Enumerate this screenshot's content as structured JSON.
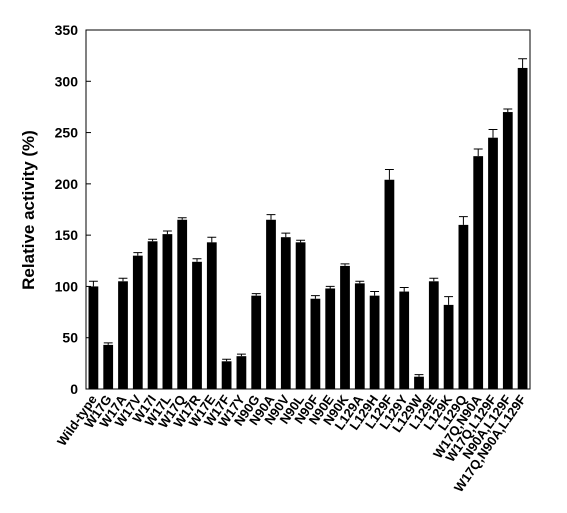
{
  "chart_data": {
    "type": "bar",
    "ylabel": "Relative activity (%)",
    "categories": [
      "Wild-type",
      "W17G",
      "W17A",
      "W17V",
      "W17I",
      "W17L",
      "W17Q",
      "W17R",
      "W17E",
      "W17F",
      "W17Y",
      "N90G",
      "N90A",
      "N90V",
      "N90L",
      "N90F",
      "N90E",
      "N90K",
      "L129A",
      "L129H",
      "L129F",
      "L129Y",
      "L129W",
      "L129E",
      "L129K",
      "L129Q",
      "W17Q,N90A",
      "W17Q,L129F",
      "N90A,L129F",
      "W17Q,N90A,L129F"
    ],
    "values": [
      100,
      43,
      105,
      130,
      144,
      151,
      165,
      124,
      143,
      27,
      32,
      91,
      165,
      148,
      143,
      88,
      98,
      120,
      103,
      91,
      204,
      95,
      12,
      105,
      82,
      160,
      227,
      245,
      270,
      313
    ],
    "errors": [
      5,
      2,
      3,
      3,
      2,
      3,
      2,
      3,
      5,
      2,
      2,
      2,
      5,
      4,
      2,
      3,
      2,
      2,
      2,
      4,
      10,
      4,
      2,
      3,
      8,
      8,
      7,
      8,
      3,
      9
    ],
    "color": "#000000",
    "ylim": [
      0,
      350
    ],
    "yticks": [
      0,
      50,
      100,
      150,
      200,
      250,
      300,
      350
    ]
  }
}
